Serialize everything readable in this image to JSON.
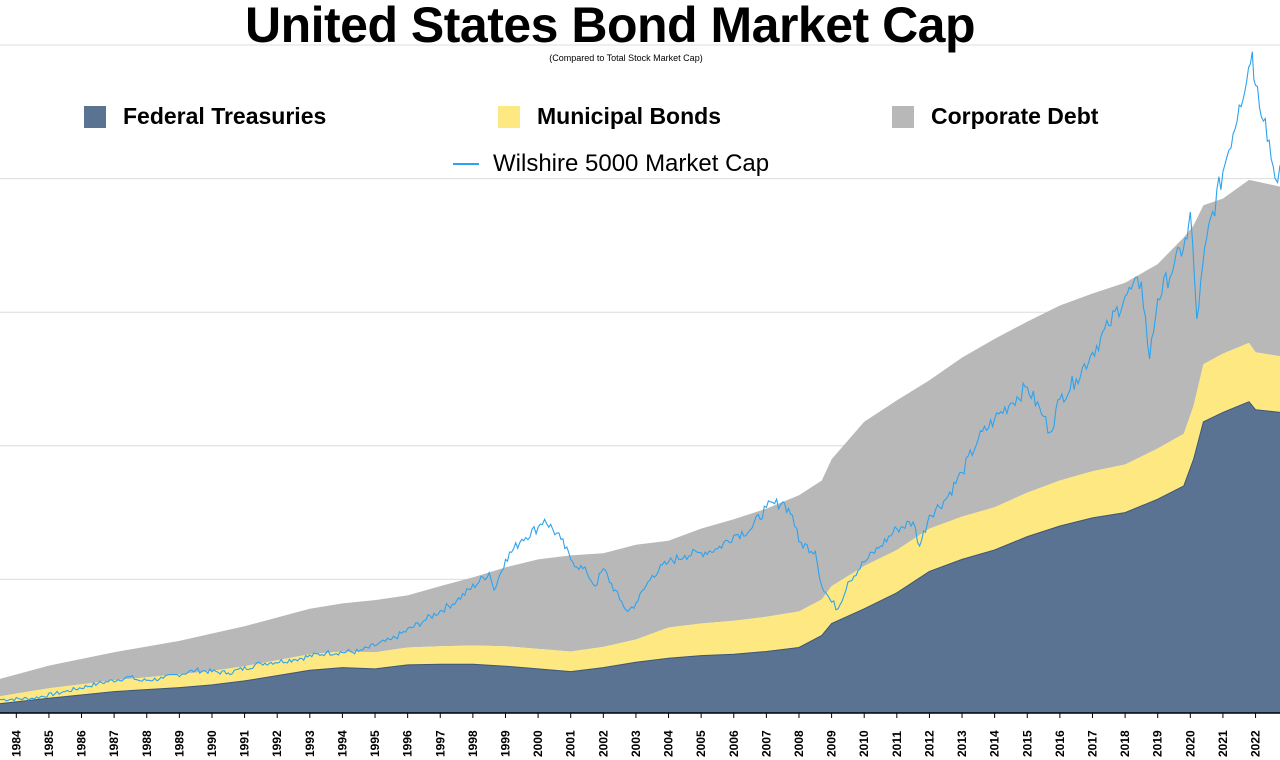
{
  "title": "United States Bond Market Cap",
  "subtitle": "(Compared to Total Stock Market Cap)",
  "legend": [
    {
      "label": "Federal Treasuries",
      "color": "#5a7393"
    },
    {
      "label": "Municipal Bonds",
      "color": "#fde882"
    },
    {
      "label": "Corporate Debt",
      "color": "#b8b8b8"
    }
  ],
  "line_legend": {
    "label": "Wilshire 5000 Market Cap",
    "color": "#2ca3f0"
  },
  "chart_data": {
    "type": "area",
    "stacked": true,
    "title": "United States Bond Market Cap",
    "subtitle": "(Compared to Total Stock Market Cap)",
    "xlabel": "",
    "ylabel": "",
    "x_tick_labels": [
      "1984",
      "1985",
      "1986",
      "1987",
      "1988",
      "1989",
      "1990",
      "1991",
      "1992",
      "1993",
      "1994",
      "1995",
      "1996",
      "1997",
      "1998",
      "1999",
      "2000",
      "2001",
      "2002",
      "2003",
      "2004",
      "2005",
      "2006",
      "2007",
      "2008",
      "2009",
      "2010",
      "2011",
      "2012",
      "2013",
      "2014",
      "2015",
      "2016",
      "2017",
      "2018",
      "2019",
      "2020",
      "2021",
      "2022"
    ],
    "xlim": [
      1983.5,
      2022.75
    ],
    "ylim": [
      0,
      50
    ],
    "y_gridlines": [
      10,
      20,
      30,
      40,
      50
    ],
    "grid": "horizontal",
    "legend_position": "top",
    "series": [
      {
        "name": "Federal Treasuries",
        "color": "#5a7393",
        "x": [
          1983.5,
          1985,
          1987,
          1989,
          1990,
          1991,
          1992,
          1993,
          1994,
          1995,
          1996,
          1997,
          1998,
          1999,
          2000,
          2001,
          2002,
          2003,
          2004,
          2005,
          2006,
          2007,
          2008,
          2008.7,
          2009,
          2010,
          2011,
          2012,
          2013,
          2014,
          2015,
          2016,
          2017,
          2018,
          2019,
          2019.8,
          2020.1,
          2020.4,
          2021,
          2021.8,
          2022,
          2022.75
        ],
        "values": [
          0.7,
          1.1,
          1.6,
          1.9,
          2.1,
          2.4,
          2.8,
          3.2,
          3.4,
          3.3,
          3.6,
          3.65,
          3.65,
          3.5,
          3.3,
          3.1,
          3.4,
          3.8,
          4.1,
          4.3,
          4.4,
          4.6,
          4.9,
          5.8,
          6.7,
          7.8,
          9.0,
          10.6,
          11.5,
          12.2,
          13.2,
          14.0,
          14.6,
          15.0,
          16.0,
          17.0,
          19.0,
          21.8,
          22.5,
          23.3,
          22.7,
          22.5
        ]
      },
      {
        "name": "Municipal Bonds",
        "color": "#fde882",
        "x": [
          1983.5,
          1985,
          1987,
          1989,
          1990,
          1991,
          1992,
          1993,
          1994,
          1995,
          1996,
          1997,
          1998,
          1999,
          2000,
          2001,
          2002,
          2003,
          2004,
          2005,
          2006,
          2007,
          2008,
          2008.7,
          2009,
          2010,
          2011,
          2012,
          2013,
          2014,
          2015,
          2016,
          2017,
          2018,
          2019,
          2019.8,
          2020.1,
          2020.4,
          2021,
          2021.8,
          2022,
          2022.75
        ],
        "values": [
          0.55,
          0.75,
          0.85,
          1.0,
          1.05,
          1.1,
          1.15,
          1.2,
          1.2,
          1.25,
          1.3,
          1.35,
          1.4,
          1.5,
          1.5,
          1.5,
          1.55,
          1.7,
          2.3,
          2.4,
          2.5,
          2.6,
          2.7,
          2.7,
          2.8,
          3.2,
          3.2,
          3.2,
          3.2,
          3.2,
          3.3,
          3.4,
          3.5,
          3.6,
          3.8,
          3.9,
          4.0,
          4.3,
          4.4,
          4.4,
          4.3,
          4.2
        ]
      },
      {
        "name": "Corporate Debt",
        "color": "#b8b8b8",
        "x": [
          1983.5,
          1985,
          1987,
          1989,
          1990,
          1991,
          1992,
          1993,
          1994,
          1995,
          1996,
          1997,
          1998,
          1999,
          2000,
          2001,
          2002,
          2003,
          2004,
          2005,
          2006,
          2007,
          2008,
          2008.7,
          2009,
          2010,
          2011,
          2012,
          2013,
          2014,
          2015,
          2016,
          2017,
          2018,
          2019,
          2019.8,
          2020.1,
          2020.4,
          2021,
          2021.8,
          2022,
          2022.75
        ],
        "values": [
          1.3,
          1.7,
          2.1,
          2.5,
          2.8,
          3.0,
          3.2,
          3.4,
          3.6,
          3.9,
          3.9,
          4.5,
          5.1,
          5.9,
          6.7,
          7.2,
          7.0,
          7.1,
          6.5,
          7.1,
          7.6,
          8.1,
          8.7,
          8.9,
          9.5,
          10.8,
          11.2,
          11.1,
          11.9,
          12.6,
          12.8,
          13.1,
          13.3,
          13.6,
          13.8,
          14.7,
          13.5,
          11.9,
          11.6,
          12.2,
          12.8,
          12.7
        ]
      }
    ],
    "line_series": {
      "name": "Wilshire 5000 Market Cap",
      "color": "#2ca3f0",
      "x": [
        1983.5,
        1984.5,
        1985.5,
        1986.5,
        1987.5,
        1987.8,
        1988.5,
        1989.5,
        1990.5,
        1991.5,
        1992.5,
        1993.5,
        1994.5,
        1995.5,
        1996.5,
        1997.5,
        1998.5,
        1998.65,
        1999,
        1999.5,
        2000.0,
        2000.2,
        2000.7,
        2001.0,
        2001.5,
        2001.75,
        2002.0,
        2002.5,
        2002.75,
        2003.0,
        2003.5,
        2004.0,
        2004.5,
        2005.0,
        2005.5,
        2006.0,
        2006.5,
        2007.0,
        2007.5,
        2007.8,
        2008.0,
        2008.5,
        2008.7,
        2009.0,
        2009.2,
        2009.5,
        2010.0,
        2010.5,
        2011.0,
        2011.5,
        2011.7,
        2012.0,
        2012.5,
        2013.0,
        2013.5,
        2014.0,
        2014.5,
        2015.0,
        2015.5,
        2015.7,
        2016.0,
        2016.5,
        2017.0,
        2017.5,
        2018.0,
        2018.5,
        2018.75,
        2019.0,
        2019.5,
        2019.9,
        2020.0,
        2020.2,
        2020.5,
        2021.0,
        2021.5,
        2021.9,
        2022.0,
        2022.3,
        2022.6,
        2022.75
      ],
      "values": [
        1.0,
        1.1,
        1.6,
        2.2,
        2.7,
        2.4,
        2.6,
        3.2,
        3.0,
        3.7,
        4.0,
        4.5,
        4.6,
        5.5,
        6.9,
        8.4,
        10.5,
        9.2,
        11.5,
        13.0,
        13.9,
        14.5,
        13.0,
        11.5,
        10.5,
        9.5,
        10.8,
        8.5,
        7.6,
        8.2,
        10.3,
        11.3,
        11.8,
        12.0,
        12.3,
        13.3,
        13.7,
        15.4,
        15.8,
        14.8,
        12.8,
        12.1,
        9.5,
        8.3,
        7.8,
        9.8,
        11.3,
        12.5,
        13.8,
        14.3,
        12.5,
        14.8,
        16.0,
        18.0,
        20.5,
        22.0,
        23.2,
        24.4,
        22.2,
        21.0,
        23.5,
        25.0,
        27.0,
        29.0,
        31.2,
        32.3,
        26.5,
        31.0,
        33.5,
        35.5,
        37.5,
        29.5,
        35.5,
        40.5,
        45.5,
        49.5,
        47.0,
        44.5,
        40.0,
        41.0
      ]
    }
  }
}
